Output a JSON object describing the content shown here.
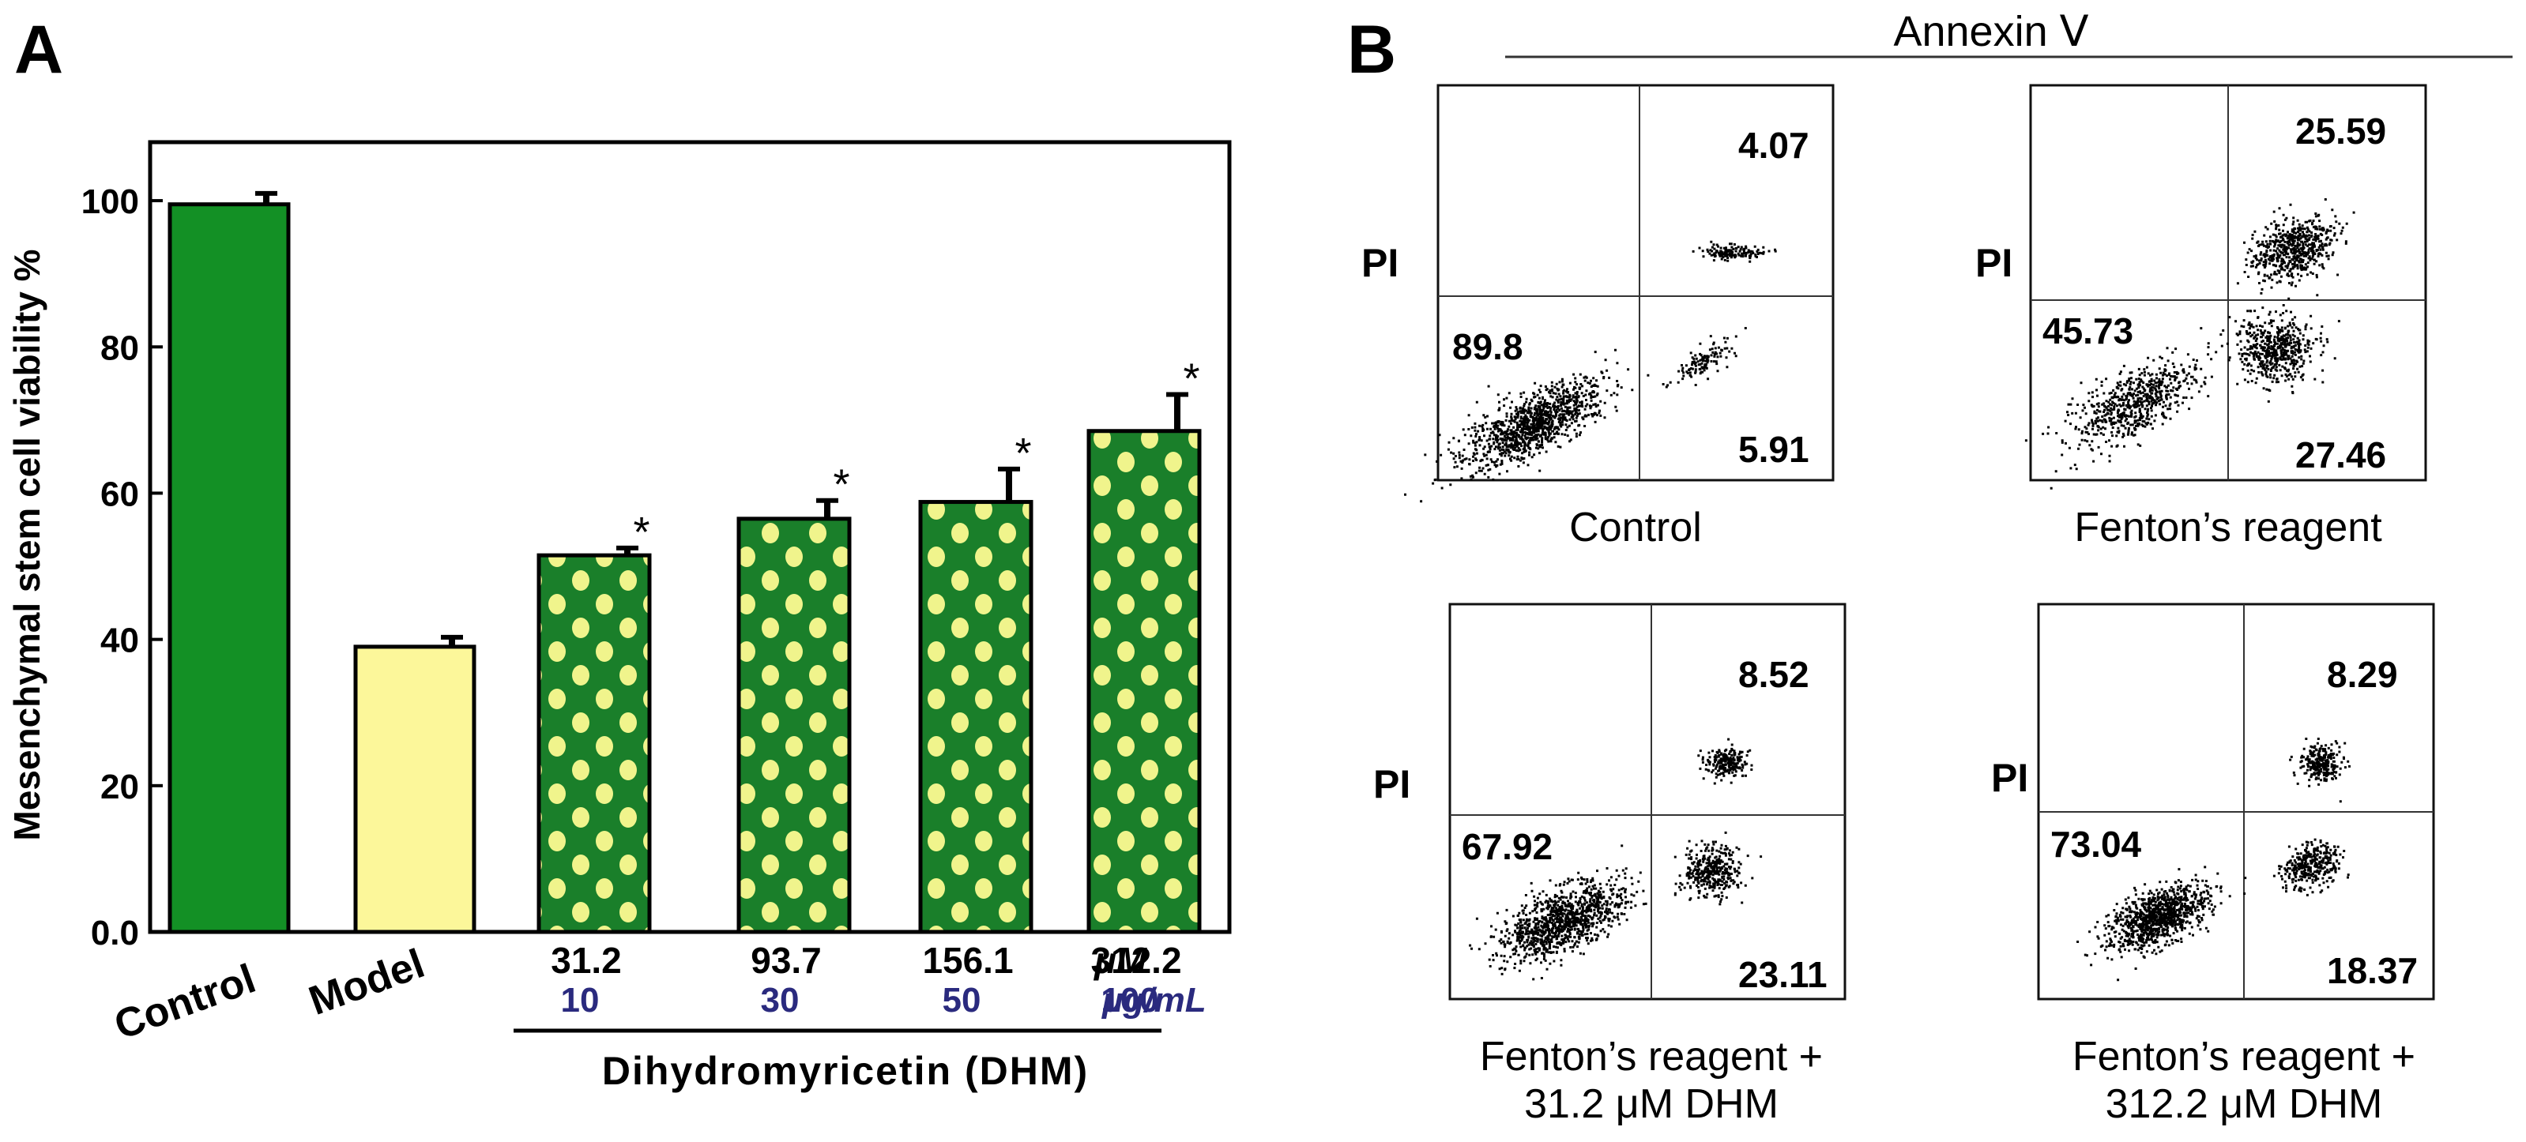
{
  "panel_a": {
    "label": "A",
    "ylabel": "Mesenchymal stem cell viability %",
    "group_label": "Dihydromyricetin (DHM)",
    "unit_um": "μM",
    "unit_mass": "μg/mL",
    "colors": {
      "control": "#139025",
      "model": "#fcf79a",
      "dhm_fill": "#1a7f2a",
      "dhm_dots": "#f0f48c",
      "mass_text": "#2a2a7e"
    }
  },
  "panel_b": {
    "label": "B",
    "header": "Annexin Ⅴ",
    "plots": [
      {
        "y_axis_label": "PI",
        "title_line1": "Control",
        "title_line2": "",
        "q_upper_right": "4.07",
        "q_lower_left": "89.8",
        "q_lower_right": "5.91"
      },
      {
        "y_axis_label": "PI",
        "title_line1": "Fenton’s reagent",
        "title_line2": "",
        "q_upper_right": "25.59",
        "q_lower_left": "45.73",
        "q_lower_right": "27.46"
      },
      {
        "y_axis_label": "PI",
        "title_line1": "Fenton’s reagent +",
        "title_line2": "31.2 μM DHM",
        "q_upper_right": "8.52",
        "q_lower_left": "67.92",
        "q_lower_right": "23.11"
      },
      {
        "y_axis_label": "PI",
        "title_line1": "Fenton’s reagent +",
        "title_line2": "312.2 μM DHM",
        "q_upper_right": "8.29",
        "q_lower_left": "73.04",
        "q_lower_right": "18.37"
      }
    ]
  },
  "chart_data": [
    {
      "type": "bar",
      "categories": [
        "Control",
        "Model",
        "31.2",
        "93.7",
        "156.1",
        "312.2"
      ],
      "sublabels": [
        "",
        "",
        "10",
        "30",
        "50",
        "100"
      ],
      "values": [
        99.5,
        39,
        51.5,
        56.5,
        58.8,
        68.5
      ],
      "errors": [
        1.5,
        1.3,
        1.0,
        2.5,
        4.5,
        5.0
      ],
      "significance": [
        "",
        "",
        "*",
        "*",
        "*",
        "*"
      ],
      "ylabel": "Mesenchymal stem cell viability %",
      "ylim": [
        0,
        108
      ],
      "yticks": [
        "0.0",
        "20",
        "40",
        "60",
        "80",
        "100"
      ],
      "ytick_values": [
        0,
        20,
        40,
        60,
        80,
        100
      ],
      "grid": false
    },
    {
      "type": "scatter",
      "xlabel": "Annexin Ⅴ",
      "ylabel": "PI",
      "quadrant_percentages": {
        "Control": {
          "upper_right": 4.07,
          "lower_left": 89.8,
          "lower_right": 5.91
        },
        "Fenton’s reagent": {
          "upper_right": 25.59,
          "lower_left": 45.73,
          "lower_right": 27.46
        },
        "Fenton’s reagent + 31.2 μM DHM": {
          "upper_right": 8.52,
          "lower_left": 67.92,
          "lower_right": 23.11
        },
        "Fenton’s reagent + 312.2 μM DHM": {
          "upper_right": 8.29,
          "lower_left": 73.04,
          "lower_right": 18.37
        }
      }
    }
  ]
}
